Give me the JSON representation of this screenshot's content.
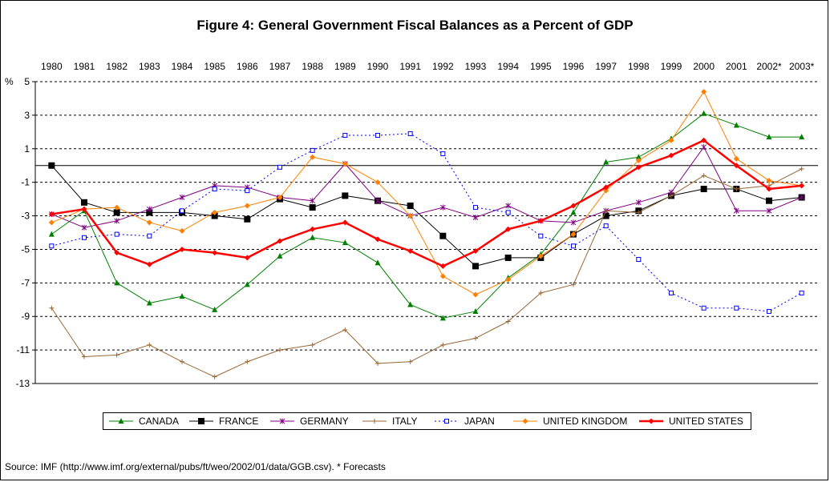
{
  "chart_data": {
    "type": "line",
    "title": "Figure 4: General Government Fiscal Balances as a Percent of GDP",
    "ylabel": "%",
    "xlabel": "",
    "source_note": "Source: IMF (http://www.imf.org/external/pubs/ft/weo/2002/01/data/GGB.csv). * Forecasts",
    "categories": [
      "1980",
      "1981",
      "1982",
      "1983",
      "1984",
      "1985",
      "1986",
      "1987",
      "1988",
      "1989",
      "1990",
      "1991",
      "1992",
      "1993",
      "1994",
      "1995",
      "1996",
      "1997",
      "1998",
      "1999",
      "2000",
      "2001",
      "2002*",
      "2003*"
    ],
    "ylim": [
      -13,
      5
    ],
    "yticks": [
      5,
      3,
      1,
      -1,
      -3,
      -5,
      -7,
      -9,
      -11,
      -13
    ],
    "grid": "horizontal-dashed",
    "legend_position": "bottom",
    "series": [
      {
        "name": "CANADA",
        "color": "#008000",
        "marker": "triangle",
        "dash": "solid",
        "width": 1,
        "values": [
          -4.1,
          -2.7,
          -7.0,
          -8.2,
          -7.8,
          -8.6,
          -7.1,
          -5.4,
          -4.3,
          -4.6,
          -5.8,
          -8.3,
          -9.1,
          -8.7,
          -6.7,
          -5.3,
          -2.8,
          0.2,
          0.5,
          1.6,
          3.1,
          2.4,
          1.7,
          1.7
        ]
      },
      {
        "name": "FRANCE",
        "color": "#000000",
        "marker": "square",
        "dash": "solid",
        "width": 1,
        "values": [
          0.0,
          -2.2,
          -2.8,
          -2.8,
          -2.8,
          -3.0,
          -3.2,
          -2.0,
          -2.5,
          -1.8,
          -2.1,
          -2.4,
          -4.2,
          -6.0,
          -5.5,
          -5.5,
          -4.1,
          -3.0,
          -2.7,
          -1.8,
          -1.4,
          -1.4,
          -2.1,
          -1.9
        ]
      },
      {
        "name": "GERMANY",
        "color": "#800080",
        "marker": "star",
        "dash": "solid",
        "width": 1,
        "values": [
          -2.9,
          -3.7,
          -3.3,
          -2.6,
          -1.9,
          -1.2,
          -1.3,
          -1.9,
          -2.1,
          0.1,
          -2.1,
          -3.0,
          -2.5,
          -3.1,
          -2.4,
          -3.3,
          -3.4,
          -2.7,
          -2.2,
          -1.6,
          1.1,
          -2.7,
          -2.7,
          -1.9
        ]
      },
      {
        "name": "ITALY",
        "color": "#996633",
        "marker": "plus",
        "dash": "solid",
        "width": 1,
        "values": [
          -8.5,
          -11.4,
          -11.3,
          -10.7,
          -11.7,
          -12.6,
          -11.7,
          -11.0,
          -10.7,
          -9.8,
          -11.8,
          -11.7,
          -10.7,
          -10.3,
          -9.3,
          -7.6,
          -7.1,
          -2.7,
          -2.8,
          -1.8,
          -0.6,
          -1.4,
          -1.2,
          -0.2
        ]
      },
      {
        "name": "JAPAN",
        "color": "#0000ff",
        "marker": "open-square",
        "dash": "dotted",
        "width": 1,
        "values": [
          -4.8,
          -4.3,
          -4.1,
          -4.2,
          -2.7,
          -1.4,
          -1.5,
          -0.1,
          0.9,
          1.8,
          1.8,
          1.9,
          0.7,
          -2.5,
          -2.8,
          -4.2,
          -4.8,
          -3.6,
          -5.6,
          -7.6,
          -8.5,
          -8.5,
          -8.7,
          -7.6
        ]
      },
      {
        "name": "UNITED KINGDOM",
        "color": "#ff8000",
        "marker": "diamond",
        "dash": "solid",
        "width": 1,
        "values": [
          -3.4,
          -2.6,
          -2.5,
          -3.4,
          -3.9,
          -2.8,
          -2.4,
          -1.9,
          0.5,
          0.1,
          -1.0,
          -3.0,
          -6.6,
          -7.7,
          -6.8,
          -5.4,
          -4.1,
          -1.5,
          0.3,
          1.5,
          4.4,
          0.4,
          -0.9,
          -1.2
        ]
      },
      {
        "name": "UNITED STATES",
        "color": "#ff0000",
        "marker": "diamond",
        "dash": "solid",
        "width": 2.5,
        "values": [
          -2.9,
          -2.6,
          -5.2,
          -5.9,
          -5.0,
          -5.2,
          -5.5,
          -4.5,
          -3.8,
          -3.4,
          -4.4,
          -5.1,
          -6.0,
          -5.1,
          -3.8,
          -3.3,
          -2.4,
          -1.3,
          -0.1,
          0.6,
          1.5,
          0.0,
          -1.4,
          -1.2
        ]
      }
    ]
  }
}
